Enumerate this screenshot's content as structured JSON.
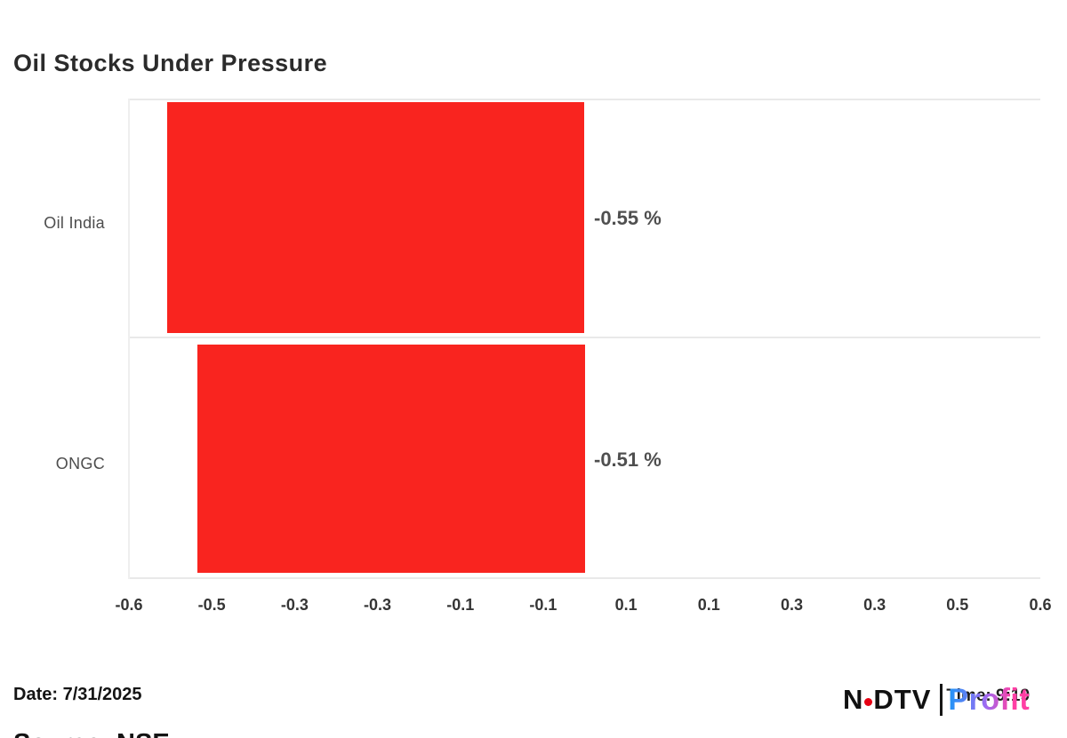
{
  "page": {
    "background": "#ffffff"
  },
  "chart_data": {
    "type": "bar",
    "orientation": "horizontal",
    "title": "Oil Stocks Under Pressure",
    "categories": [
      "Oil India",
      "ONGC"
    ],
    "values": [
      -0.55,
      -0.51
    ],
    "value_labels": [
      "-0.55 %",
      "-0.51 %"
    ],
    "unit": "%",
    "bar_color": "#f9241f",
    "xlim": [
      -0.6,
      0.6
    ],
    "x_tick_labels": [
      "-0.6",
      "-0.5",
      "-0.3",
      "-0.3",
      "-0.1",
      "-0.1",
      "0.1",
      "0.1",
      "0.3",
      "0.3",
      "0.5",
      "0.6"
    ],
    "grid": false,
    "legend_position": "none",
    "row_divider_color": "#e9e9e9"
  },
  "footer": {
    "date_label": "Date: 7/31/2025",
    "source_label": "Source: NSE"
  },
  "branding": {
    "ndtv_left": "N",
    "ndtv_right": "DTV",
    "separator": "|",
    "profit_text": "Profit",
    "watermark_text": "Time: 9:19",
    "ndtv_color": "#111111",
    "dot_color": "#e60013",
    "profit_gradient_start": "#1e96f6",
    "profit_gradient_mid": "#9a6cf3",
    "profit_gradient_end": "#ff3fa4"
  }
}
